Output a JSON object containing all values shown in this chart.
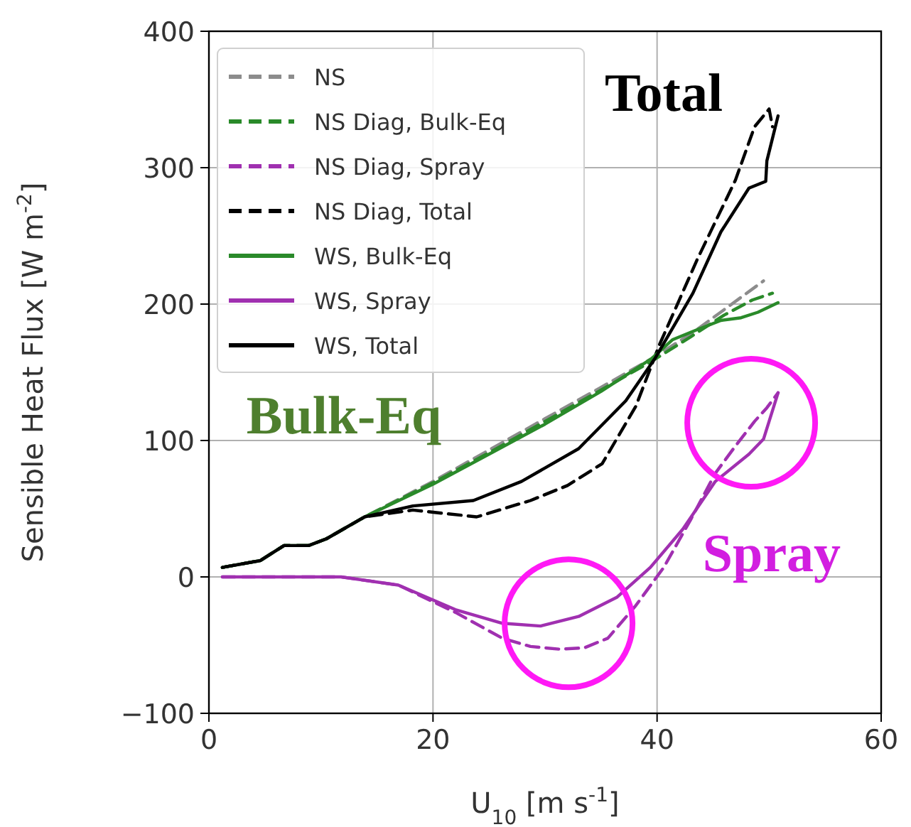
{
  "chart_data": {
    "type": "line",
    "xlabel": "U$_{10}$ [m s$^{-1}$]",
    "ylabel": "Sensible Heat Flux [W m$^{-2}$]",
    "xlim": [
      0,
      60
    ],
    "ylim": [
      -100,
      400
    ],
    "xticks": [
      0,
      20,
      40,
      60
    ],
    "yticks": [
      -100,
      0,
      100,
      200,
      300,
      400
    ],
    "grid": true,
    "legend": "top left",
    "annotations": [
      "Total",
      "Bulk-Eq",
      "Spray"
    ],
    "series": [
      {
        "name": "NS",
        "color": "#8c8c8c",
        "line_style": "dashed",
        "x": [
          1.2,
          4.6,
          6.7,
          8.9,
          10.5,
          13.9,
          20,
          25,
          30,
          35,
          39.5,
          43,
          46,
          49.5
        ],
        "values": [
          7,
          12,
          23,
          23,
          28,
          44,
          70,
          93,
          116,
          139,
          160,
          178,
          196,
          217
        ]
      },
      {
        "name": "NS Diag, Bulk-Eq",
        "color": "#2a8a2a",
        "line_style": "dashed",
        "x": [
          1.2,
          4.6,
          6.7,
          8.9,
          10.5,
          13.9,
          20,
          25,
          30,
          35,
          39.5,
          43,
          46,
          48.5,
          50.3
        ],
        "values": [
          7,
          12,
          23,
          23,
          28,
          44,
          69,
          91,
          114,
          137,
          158,
          176,
          192,
          203,
          208
        ]
      },
      {
        "name": "NS Diag, Spray",
        "color": "#a030b0",
        "line_style": "dashed",
        "x": [
          1.2,
          6,
          11.8,
          16.9,
          22,
          26.2,
          28.7,
          31.3,
          33.5,
          35.6,
          38.1,
          40.6,
          43,
          45.2,
          47,
          48.7,
          49.8,
          50.8
        ],
        "values": [
          0,
          0,
          0,
          -6,
          -26,
          -45,
          -51,
          -53,
          -52,
          -45,
          -21,
          7,
          42,
          76,
          96,
          114,
          124,
          135
        ]
      },
      {
        "name": "NS Diag, Total",
        "color": "#000000",
        "line_style": "dashed",
        "x": [
          1.2,
          4.6,
          6.7,
          8.9,
          10.5,
          13.9,
          18.2,
          23.9,
          28.7,
          32,
          35.1,
          38.1,
          40.2,
          43.6,
          47,
          48.7,
          50,
          50.3
        ],
        "values": [
          7,
          12,
          23,
          23,
          28,
          44,
          49,
          44,
          56,
          67,
          83,
          125,
          170,
          233,
          291,
          330,
          343,
          330
        ]
      },
      {
        "name": "WS, Bulk-Eq",
        "color": "#2a8a2a",
        "line_style": "solid",
        "x": [
          1.2,
          4.6,
          6.7,
          8.9,
          10.5,
          13.9,
          20,
          25,
          30,
          35,
          39.5,
          41.4,
          43.5,
          45.7,
          47.5,
          49,
          50.8
        ],
        "values": [
          7,
          12,
          23,
          23,
          28,
          44,
          68,
          90,
          112,
          136,
          160,
          174,
          181,
          188,
          190,
          194,
          201
        ]
      },
      {
        "name": "WS, Spray",
        "color": "#a030b0",
        "line_style": "solid",
        "x": [
          1.2,
          6,
          11.8,
          16.9,
          22,
          26.2,
          29.6,
          33,
          36.4,
          39.4,
          42.3,
          45.2,
          48.2,
          49.5,
          50.8
        ],
        "values": [
          0,
          0,
          0,
          -6,
          -24,
          -34,
          -36,
          -29,
          -15,
          7,
          35,
          70,
          90,
          101,
          135
        ]
      },
      {
        "name": "WS, Total",
        "color": "#000000",
        "line_style": "solid",
        "x": [
          1.2,
          4.6,
          6.7,
          8.9,
          10.5,
          13.9,
          18.2,
          23.6,
          27.9,
          33,
          37.2,
          39.8,
          43.2,
          45.7,
          48.2,
          49.7,
          49.8,
          50.8
        ],
        "values": [
          7,
          12,
          23,
          23,
          28,
          44,
          52,
          56,
          70,
          94,
          129,
          160,
          208,
          253,
          285,
          290,
          305,
          338
        ]
      }
    ]
  }
}
